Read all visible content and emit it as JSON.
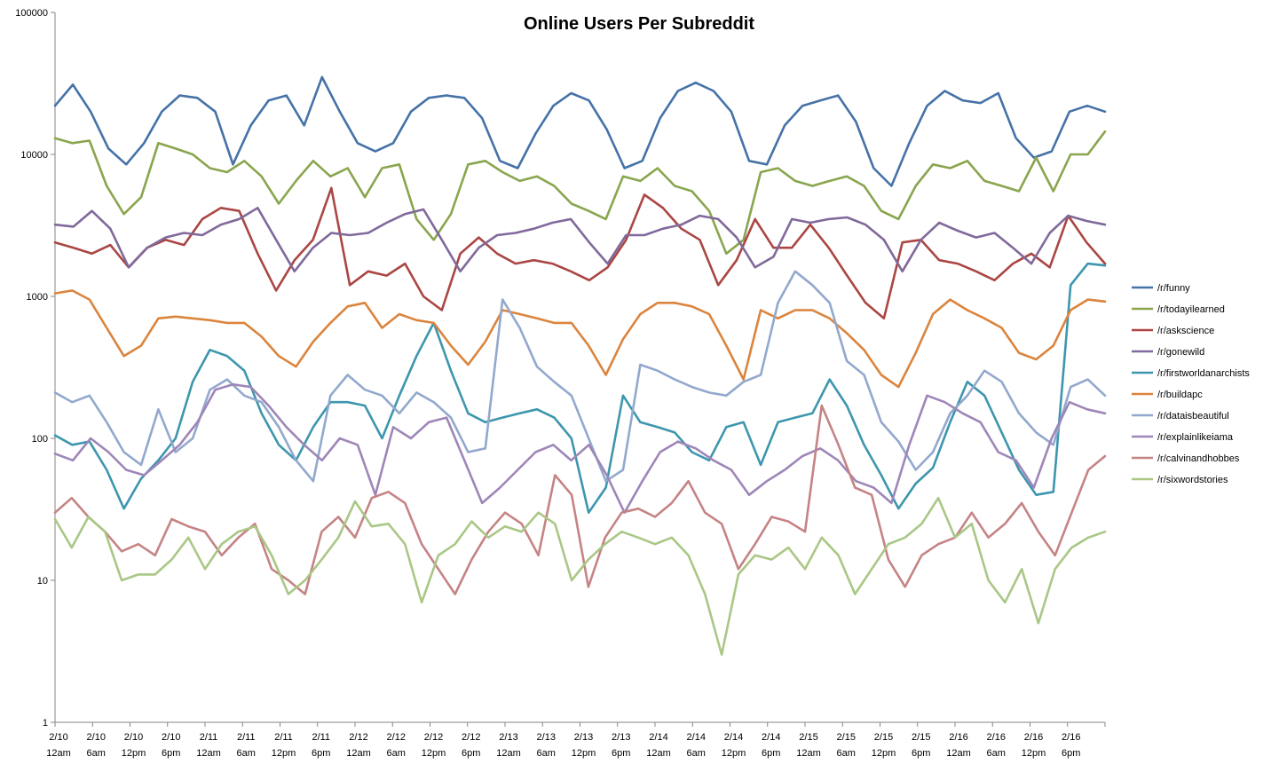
{
  "chart_data": {
    "type": "line",
    "title": "Online Users Per Subreddit",
    "xlabel": "",
    "ylabel": "",
    "yscale": "log",
    "ylim": [
      1,
      100000
    ],
    "yticks": [
      "1",
      "10",
      "100",
      "1000",
      "10000",
      "100000"
    ],
    "grid": false,
    "legend_position": "right",
    "x_range": [
      0,
      28
    ],
    "xtick_labels": [
      [
        "2/10",
        "12am"
      ],
      [
        "2/10",
        "6am"
      ],
      [
        "2/10",
        "12pm"
      ],
      [
        "2/10",
        "6pm"
      ],
      [
        "2/11",
        "12am"
      ],
      [
        "2/11",
        "6am"
      ],
      [
        "2/11",
        "12pm"
      ],
      [
        "2/11",
        "6pm"
      ],
      [
        "2/12",
        "12am"
      ],
      [
        "2/12",
        "6am"
      ],
      [
        "2/12",
        "12pm"
      ],
      [
        "2/12",
        "6pm"
      ],
      [
        "2/13",
        "12am"
      ],
      [
        "2/13",
        "6am"
      ],
      [
        "2/13",
        "12pm"
      ],
      [
        "2/13",
        "6pm"
      ],
      [
        "2/14",
        "12am"
      ],
      [
        "2/14",
        "6am"
      ],
      [
        "2/14",
        "12pm"
      ],
      [
        "2/14",
        "6pm"
      ],
      [
        "2/15",
        "12am"
      ],
      [
        "2/15",
        "6am"
      ],
      [
        "2/15",
        "12pm"
      ],
      [
        "2/15",
        "6pm"
      ],
      [
        "2/16",
        "12am"
      ],
      [
        "2/16",
        "6am"
      ],
      [
        "2/16",
        "12pm"
      ],
      [
        "2/16",
        "6pm"
      ]
    ],
    "series": [
      {
        "name": "/r/funny",
        "color": "#4572A7",
        "values": [
          22000,
          31000,
          20000,
          11000,
          8500,
          12000,
          20000,
          26000,
          25000,
          20000,
          8500,
          16000,
          24000,
          26000,
          16000,
          35000,
          20000,
          12000,
          10500,
          12000,
          20000,
          25000,
          26000,
          25000,
          18000,
          9000,
          8000,
          14000,
          22000,
          27000,
          24000,
          15000,
          8000,
          9000,
          18000,
          28000,
          32000,
          28000,
          20000,
          9000,
          8500,
          16000,
          22000,
          24000,
          26000,
          17000,
          8000,
          6000,
          12000,
          22000,
          28000,
          24000,
          23000,
          27000,
          13000,
          9500,
          10500,
          20000,
          22000,
          20000
        ]
      },
      {
        "name": "/r/todayilearned",
        "color": "#89A54E",
        "values": [
          13000,
          12000,
          12500,
          6000,
          3800,
          5000,
          12000,
          11000,
          10000,
          8000,
          7500,
          9000,
          7000,
          4500,
          6500,
          9000,
          7000,
          8000,
          5000,
          8000,
          8500,
          3500,
          2500,
          3800,
          8500,
          9000,
          7500,
          6500,
          7000,
          6000,
          4500,
          4000,
          3500,
          7000,
          6500,
          8000,
          6000,
          5500,
          4000,
          2000,
          2500,
          7500,
          8000,
          6500,
          6000,
          6500,
          7000,
          6000,
          4000,
          3500,
          6000,
          8500,
          8000,
          9000,
          6500,
          6000,
          5500,
          9500,
          5500,
          10000,
          10000,
          14500
        ]
      },
      {
        "name": "/r/askscience",
        "color": "#AA4643",
        "values": [
          2400,
          2200,
          2000,
          2300,
          1600,
          2200,
          2500,
          2300,
          3500,
          4200,
          4000,
          2000,
          1100,
          1800,
          2500,
          5800,
          1200,
          1500,
          1400,
          1700,
          1000,
          800,
          2000,
          2600,
          2000,
          1700,
          1800,
          1700,
          1500,
          1300,
          1600,
          2500,
          5200,
          4200,
          3000,
          2500,
          1200,
          1800,
          3500,
          2200,
          2200,
          3200,
          2200,
          1400,
          900,
          700,
          2400,
          2500,
          1800,
          1700,
          1500,
          1300,
          1700,
          2000,
          1600,
          3700,
          2400,
          1700
        ]
      },
      {
        "name": "/r/gonewild",
        "color": "#80699B",
        "values": [
          3200,
          3100,
          4000,
          3000,
          1600,
          2200,
          2600,
          2800,
          2700,
          3200,
          3500,
          4200,
          2500,
          1500,
          2200,
          2800,
          2700,
          2800,
          3300,
          3800,
          4100,
          2500,
          1500,
          2200,
          2700,
          2800,
          3000,
          3300,
          3500,
          2400,
          1700,
          2700,
          2700,
          3000,
          3200,
          3700,
          3500,
          2600,
          1600,
          1900,
          3500,
          3300,
          3500,
          3600,
          3200,
          2500,
          1500,
          2500,
          3300,
          2900,
          2600,
          2800,
          2200,
          1700,
          2800,
          3700,
          3400,
          3200
        ]
      },
      {
        "name": "/r/firstworldanarchists",
        "color": "#3D96AE",
        "values": [
          105,
          90,
          95,
          60,
          32,
          52,
          70,
          100,
          250,
          420,
          380,
          300,
          150,
          90,
          70,
          120,
          180,
          180,
          170,
          100,
          200,
          380,
          650,
          300,
          150,
          130,
          140,
          150,
          160,
          140,
          100,
          30,
          45,
          200,
          130,
          120,
          110,
          80,
          70,
          120,
          130,
          65,
          130,
          140,
          150,
          260,
          170,
          90,
          55,
          32,
          48,
          62,
          130,
          250,
          200,
          110,
          60,
          40,
          42,
          1200,
          1700,
          1650
        ]
      },
      {
        "name": "/r/buildapc",
        "color": "#DB843D",
        "values": [
          1050,
          1100,
          950,
          600,
          380,
          450,
          700,
          720,
          700,
          680,
          650,
          650,
          520,
          380,
          320,
          480,
          650,
          850,
          900,
          600,
          750,
          680,
          650,
          450,
          330,
          480,
          800,
          750,
          700,
          650,
          650,
          450,
          280,
          500,
          750,
          900,
          900,
          850,
          750,
          450,
          260,
          800,
          700,
          800,
          800,
          700,
          550,
          420,
          280,
          230,
          400,
          750,
          950,
          800,
          700,
          600,
          400,
          360,
          450,
          800,
          950,
          920
        ]
      },
      {
        "name": "/r/dataisbeautiful",
        "color": "#92A8CD",
        "values": [
          210,
          180,
          200,
          130,
          80,
          65,
          160,
          80,
          100,
          220,
          260,
          200,
          180,
          120,
          70,
          50,
          200,
          280,
          220,
          200,
          150,
          210,
          180,
          140,
          80,
          85,
          950,
          600,
          320,
          250,
          200,
          100,
          50,
          60,
          330,
          300,
          260,
          230,
          210,
          200,
          250,
          280,
          900,
          1500,
          1200,
          900,
          350,
          280,
          130,
          95,
          60,
          80,
          150,
          200,
          300,
          250,
          150,
          110,
          90,
          230,
          260,
          200
        ]
      },
      {
        "name": "/r/explainlikeiama",
        "color": "#A47D7C",
        "stroke": "#9E86B8",
        "values": [
          78,
          70,
          100,
          80,
          60,
          55,
          70,
          90,
          130,
          220,
          240,
          230,
          170,
          120,
          90,
          70,
          100,
          90,
          40,
          120,
          100,
          130,
          140,
          70,
          35,
          45,
          60,
          80,
          90,
          70,
          90,
          55,
          30,
          50,
          80,
          95,
          85,
          70,
          60,
          40,
          50,
          60,
          75,
          85,
          70,
          50,
          45,
          35,
          90,
          200,
          180,
          150,
          130,
          80,
          70,
          45,
          100,
          180,
          160,
          150
        ]
      },
      {
        "name": "/r/calvinandhobbes",
        "color": "#D0989A",
        "stroke": "#C58384",
        "values": [
          30,
          38,
          28,
          22,
          16,
          18,
          15,
          27,
          24,
          22,
          15,
          20,
          25,
          12,
          10,
          8,
          22,
          28,
          20,
          38,
          42,
          35,
          18,
          12,
          8,
          14,
          22,
          30,
          25,
          15,
          55,
          40,
          9,
          20,
          30,
          32,
          28,
          35,
          50,
          30,
          25,
          12,
          18,
          28,
          26,
          22,
          170,
          90,
          45,
          40,
          14,
          9,
          15,
          18,
          20,
          30,
          20,
          25,
          35,
          22,
          15,
          30,
          60,
          75
        ]
      },
      {
        "name": "/r/sixwordstories",
        "color": "#B3C88E",
        "stroke": "#A9C785",
        "values": [
          27,
          17,
          28,
          22,
          10,
          11,
          11,
          14,
          20,
          12,
          18,
          22,
          24,
          15,
          8,
          10,
          14,
          20,
          36,
          24,
          25,
          18,
          7,
          15,
          18,
          26,
          20,
          24,
          22,
          30,
          25,
          10,
          14,
          18,
          22,
          20,
          18,
          20,
          15,
          8,
          3,
          11,
          15,
          14,
          17,
          12,
          20,
          15,
          8,
          12,
          18,
          20,
          25,
          38,
          20,
          25,
          10,
          7,
          12,
          5,
          12,
          17,
          20,
          22
        ]
      }
    ]
  }
}
